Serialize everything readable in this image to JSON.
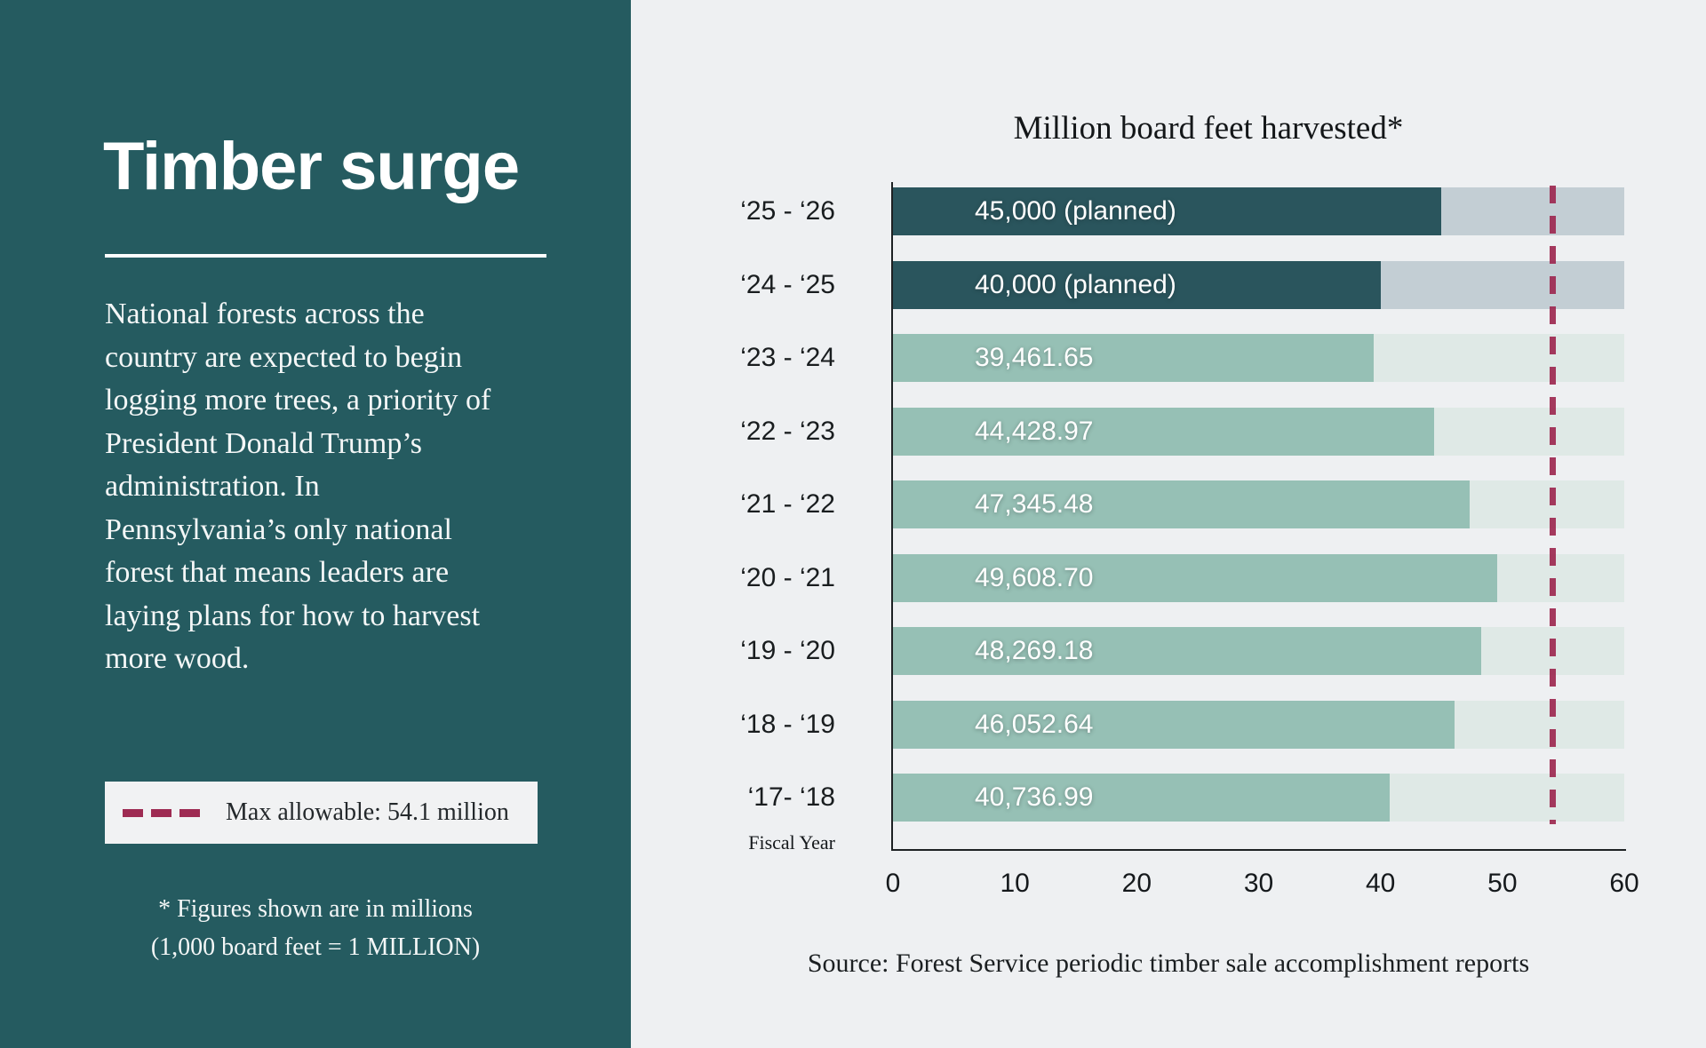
{
  "left_panel": {
    "title": "Timber surge",
    "description_lines": [
      "National forests across the",
      "country are expected to begin",
      "logging more trees, a priority of",
      "President Donald Trump’s",
      "administration. In",
      "Pennsylvania’s only national",
      "forest that means leaders are",
      "laying plans for how to harvest",
      "more wood."
    ],
    "legend_label": "Max allowable: 54.1 million",
    "footnote_line1": "* Figures shown are in millions",
    "footnote_line2": "(1,000 board feet = 1 MILLION)"
  },
  "chart": {
    "title": "Million board feet harvested*",
    "fiscal_year_label": "Fiscal Year",
    "source": "Source: Forest Service periodic timber sale accomplishment reports"
  },
  "chart_data": {
    "type": "bar",
    "orientation": "horizontal",
    "title": "Million board feet harvested*",
    "categories": [
      "‘25 - ‘26",
      "‘24 - ‘25",
      "‘23 - ‘24",
      "‘22 - ‘23",
      "‘21 - ‘22",
      "‘20 - ‘21",
      "‘19 - ‘20",
      "‘18 - ‘19",
      "‘17- ‘18"
    ],
    "bar_labels": [
      "45,000 (planned)",
      "40,000 (planned)",
      "39,461.65",
      "44,428.97",
      "47,345.48",
      "49,608.70",
      "48,269.18",
      "46,052.64",
      "40,736.99"
    ],
    "values": [
      45000,
      40000,
      39461.65,
      44428.97,
      47345.48,
      49608.7,
      48269.18,
      46052.64,
      40736.99
    ],
    "values_axis_millions": [
      45.0,
      40.0,
      39.46,
      44.43,
      47.35,
      49.61,
      48.27,
      46.05,
      40.74
    ],
    "planned": [
      true,
      true,
      false,
      false,
      false,
      false,
      false,
      false,
      false
    ],
    "x_ticks": [
      0,
      10,
      20,
      30,
      40,
      50,
      60
    ],
    "xlim": [
      0,
      60
    ],
    "category_axis_label": "Fiscal Year",
    "reference_line": {
      "value": 54.1,
      "label": "Max allowable: 54.1 million"
    },
    "legend_position": "left-panel",
    "grid": false,
    "colors": {
      "panel_teal": "#255b60",
      "planned_bar": "#2a555d",
      "planned_track": "#c3ced4",
      "actual_bar": "#96c0b5",
      "actual_track": "#dfe9e6",
      "background": "#eef0f2",
      "reference_maroon": "#9e2b52",
      "axis_ink": "#1d2123",
      "bar_value_text": "#ffffff"
    }
  }
}
